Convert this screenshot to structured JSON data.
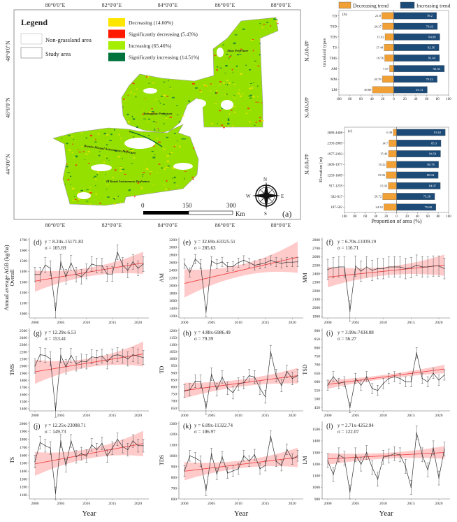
{
  "map": {
    "panel_label": "(a)",
    "legend_title": "Legend",
    "legend_items": [
      {
        "label": "Non-grassland area"
      },
      {
        "label": "Study area"
      }
    ],
    "trend_legend": [
      {
        "label": "Decreasing (14.60%)",
        "color": "#ffe600"
      },
      {
        "label": "Significantly decreasing (5.43%)",
        "color": "#ff1a00"
      },
      {
        "label": "Increasing (65.46%)",
        "color": "#a6ee00"
      },
      {
        "label": "Significantly increasing (14.51%)",
        "color": "#00733c"
      }
    ],
    "lon_labels": [
      "80°0'0\"E",
      "82°0'0\"E",
      "84°0'0\"E",
      "86°0'0\"E",
      "88°0'0\"E"
    ],
    "lat_labels": [
      "48°0'0\"N",
      "46°0'0\"N",
      "44°0'0\"N"
    ],
    "prefectures": [
      "Altay Prefecture",
      "Tarbagatay Prefecture",
      "Bortala Mongol Autonomous Prefecture",
      "Ili Kazak Autonomous Prefecture"
    ],
    "scale": {
      "ticks": [
        "0",
        "150",
        "300"
      ],
      "unit": "Km"
    },
    "compass": {
      "n": "N",
      "s": "S",
      "e": "E",
      "w": "W"
    }
  },
  "bar_legend": {
    "decreasing": "Decreasing trend",
    "increasing": "Increasing trend",
    "dec_color": "#f0a035",
    "inc_color": "#1d4b78"
  },
  "chart_data": [
    {
      "id": "b",
      "type": "bar",
      "panel_label": "(b)",
      "orientation": "horizontal-diverging",
      "ylabel": "Grassland types",
      "xlabel": "",
      "categories": [
        "TD",
        "TSD",
        "TDS",
        "TS",
        "TMS",
        "AM",
        "MM",
        "LM"
      ],
      "series": [
        {
          "name": "Decreasing trend",
          "values": [
            21.8,
            20.37,
            15.92,
            17.44,
            16.56,
            7.67,
            20.78,
            38.89
          ]
        },
        {
          "name": "Increasing trend",
          "values": [
            78.2,
            79.63,
            84.08,
            82.56,
            83.44,
            92.33,
            79.22,
            61.11
          ]
        }
      ],
      "xtick_labels": [
        "100",
        "80",
        "60",
        "40",
        "20",
        "0",
        "20",
        "40",
        "60",
        "80",
        "100"
      ],
      "xlim": [
        -100,
        100
      ]
    },
    {
      "id": "c",
      "type": "bar",
      "panel_label": "(c)",
      "orientation": "horizontal-diverging",
      "ylabel": "Elevation (m)",
      "xlabel": "Proportion of area (%)",
      "categories": [
        "2889-4408",
        "2393-2889",
        "1977-2393",
        "1609-1977",
        "1259-1609",
        "917-1259",
        "582-917",
        "187-582"
      ],
      "series": [
        {
          "name": "Decreasing trend",
          "values": [
            6.38,
            14.7,
            15.46,
            19.22,
            19.96,
            15.93,
            26.72,
            24.32
          ]
        },
        {
          "name": "Increasing trend",
          "values": [
            93.62,
            85.3,
            84.54,
            80.78,
            80.04,
            84.07,
            73.28,
            75.68
          ]
        }
      ],
      "xtick_labels": [
        "100",
        "80",
        "60",
        "40",
        "20",
        "0",
        "20",
        "40",
        "60",
        "80",
        "100"
      ],
      "xlim": [
        -100,
        100
      ]
    },
    {
      "id": "d",
      "type": "line",
      "panel_label": "(d)",
      "equation": "y = 8.24x-15171.83",
      "sigma": "σ = 105.69",
      "ylabel": "Annual average AGB (kg/ha)",
      "ylabel2": "Overall",
      "xlabel": "",
      "ylim": [
        960,
        1700
      ],
      "yticks": [
        1000,
        1100,
        1200,
        1300,
        1400,
        1500,
        1600,
        1700
      ],
      "xticks": [
        2000,
        2005,
        2010,
        2015,
        2020
      ],
      "x": [
        2000,
        2001,
        2002,
        2003,
        2004,
        2005,
        2006,
        2007,
        2008,
        2009,
        2010,
        2011,
        2012,
        2013,
        2014,
        2015,
        2016,
        2017,
        2018,
        2019,
        2020,
        2021
      ],
      "values": [
        1370,
        1370,
        1460,
        1430,
        1030,
        1490,
        1350,
        1480,
        1370,
        1350,
        1400,
        1470,
        1455,
        1455,
        1375,
        1375,
        1580,
        1460,
        1410,
        1490,
        1430,
        1470
      ],
      "error": 70,
      "trend": [
        1308,
        1481
      ],
      "ci_halfwidth": [
        100,
        40,
        105
      ]
    },
    {
      "id": "e",
      "type": "line",
      "panel_label": "(e)",
      "equation": "y = 32.69x-63325.51",
      "sigma": "σ = 285.63",
      "ylabel": "AM",
      "xlabel": "",
      "ylim": [
        1150,
        3200
      ],
      "yticks": [
        1200,
        1400,
        1600,
        1800,
        2000,
        2200,
        2400,
        2600,
        2800,
        3000,
        3200
      ],
      "xticks": [
        2000,
        2005,
        2010,
        2015,
        2020
      ],
      "x": [
        2000,
        2001,
        2002,
        2003,
        2004,
        2005,
        2006,
        2007,
        2008,
        2009,
        2010,
        2011,
        2012,
        2013,
        2014,
        2015,
        2016,
        2017,
        2018,
        2019,
        2020,
        2021
      ],
      "values": [
        2570,
        2340,
        2690,
        2560,
        1300,
        2640,
        2560,
        2620,
        2490,
        2500,
        2600,
        2660,
        2600,
        2530,
        2560,
        2590,
        2660,
        2610,
        2580,
        2610,
        2610,
        2620
      ],
      "error": 120,
      "trend": [
        2054,
        2741
      ],
      "ci_halfwidth": [
        370,
        150,
        410
      ]
    },
    {
      "id": "f",
      "type": "line",
      "panel_label": "(f)",
      "equation": "y = 6.70x-11039.19",
      "sigma": "σ = 116.71",
      "ylabel": "MM",
      "xlabel": "",
      "ylim": [
        1880,
        2800
      ],
      "yticks": [
        1900,
        2000,
        2100,
        2200,
        2300,
        2400,
        2500,
        2600,
        2700,
        2800
      ],
      "xticks": [
        2000,
        2005,
        2010,
        2015,
        2020
      ],
      "x": [
        2000,
        2001,
        2002,
        2003,
        2004,
        2005,
        2006,
        2007,
        2008,
        2009,
        2010,
        2011,
        2012,
        2013,
        2014,
        2015,
        2016,
        2017,
        2018,
        2019,
        2020,
        2021
      ],
      "values": [
        2450,
        2470,
        2480,
        2480,
        1960,
        2490,
        2430,
        2480,
        2440,
        2460,
        2460,
        2480,
        2480,
        2480,
        2460,
        2470,
        2500,
        2480,
        2480,
        2490,
        2490,
        2460
      ],
      "error": 120,
      "trend": [
        2361,
        2501
      ],
      "ci_halfwidth": [
        120,
        50,
        125
      ]
    },
    {
      "id": "g",
      "type": "line",
      "panel_label": "(g)",
      "equation": "y = 12.29x-6.53",
      "sigma": "σ = 153.41",
      "ylabel": "TMS",
      "xlabel": "",
      "ylim": [
        1370,
        2500
      ],
      "yticks": [
        1400,
        1500,
        1600,
        1700,
        1800,
        1900,
        2000,
        2100,
        2200,
        2300,
        2400,
        2500
      ],
      "xticks": [
        2000,
        2005,
        2010,
        2015,
        2020
      ],
      "x": [
        2000,
        2001,
        2002,
        2003,
        2004,
        2005,
        2006,
        2007,
        2008,
        2009,
        2010,
        2011,
        2012,
        2013,
        2014,
        2015,
        2016,
        2017,
        2018,
        2019,
        2020,
        2021
      ],
      "values": [
        2000,
        2160,
        2150,
        2100,
        1380,
        2150,
        1990,
        2150,
        2030,
        2070,
        2060,
        2130,
        2120,
        2140,
        2060,
        2140,
        2160,
        2140,
        2100,
        2160,
        2140,
        2120
      ],
      "error": 100,
      "trend": [
        1920,
        2170
      ],
      "ci_halfwidth": [
        170,
        60,
        175
      ]
    },
    {
      "id": "h",
      "type": "line",
      "panel_label": "(h)",
      "equation": "y = 4.88x-6986.49",
      "sigma": "σ = 79.39",
      "ylabel": "TD",
      "xlabel": "",
      "ylim": [
        630,
        1200
      ],
      "yticks": [
        650,
        700,
        750,
        800,
        850,
        900,
        950,
        1000,
        1050,
        1100,
        1150,
        1200
      ],
      "xticks": [
        2000,
        2005,
        2010,
        2015,
        2020
      ],
      "x": [
        2000,
        2001,
        2002,
        2003,
        2004,
        2005,
        2006,
        2007,
        2008,
        2009,
        2010,
        2011,
        2012,
        2013,
        2014,
        2015,
        2016,
        2017,
        2018,
        2019,
        2020,
        2021
      ],
      "values": [
        770,
        780,
        840,
        840,
        650,
        890,
        780,
        870,
        790,
        760,
        820,
        830,
        880,
        870,
        790,
        730,
        1050,
        880,
        810,
        910,
        860,
        880
      ],
      "error": 45,
      "trend": [
        775,
        880
      ],
      "ci_halfwidth": [
        55,
        25,
        55
      ]
    },
    {
      "id": "i",
      "type": "line",
      "panel_label": "(i)",
      "equation": "y = 3.99x-7434.08",
      "sigma": "σ = 56.27",
      "ylabel": "TSD",
      "xlabel": "",
      "ylim": [
        430,
        900
      ],
      "yticks": [
        450,
        500,
        550,
        600,
        650,
        700,
        750,
        800,
        850,
        900
      ],
      "xticks": [
        2000,
        2005,
        2010,
        2015,
        2020
      ],
      "x": [
        2000,
        2001,
        2002,
        2003,
        2004,
        2005,
        2006,
        2007,
        2008,
        2009,
        2010,
        2011,
        2012,
        2013,
        2014,
        2015,
        2016,
        2017,
        2018,
        2019,
        2020,
        2021
      ],
      "values": [
        580,
        630,
        590,
        600,
        450,
        620,
        580,
        630,
        560,
        550,
        590,
        620,
        630,
        620,
        600,
        600,
        770,
        620,
        600,
        650,
        610,
        640
      ],
      "error": 30,
      "trend": [
        585,
        675
      ],
      "ci_halfwidth": [
        25,
        12,
        25
      ]
    },
    {
      "id": "j",
      "type": "line",
      "panel_label": "(j)",
      "equation": "y = 12.25x-23008.71",
      "sigma": "σ = 149.73",
      "ylabel": "TS",
      "xlabel": "Year",
      "ylim": [
        1050,
        2000
      ],
      "yticks": [
        1100,
        1200,
        1300,
        1400,
        1500,
        1600,
        1700,
        1800,
        1900,
        2000
      ],
      "xticks": [
        2000,
        2005,
        2010,
        2015,
        2020
      ],
      "x": [
        2000,
        2001,
        2002,
        2003,
        2004,
        2005,
        2006,
        2007,
        2008,
        2009,
        2010,
        2011,
        2012,
        2013,
        2014,
        2015,
        2016,
        2017,
        2018,
        2019,
        2020,
        2021
      ],
      "values": [
        1520,
        1760,
        1720,
        1690,
        1120,
        1780,
        1470,
        1780,
        1580,
        1620,
        1590,
        1730,
        1670,
        1750,
        1590,
        1690,
        1800,
        1710,
        1670,
        1780,
        1720,
        1720
      ],
      "error": 80,
      "trend": [
        1491,
        1748
      ],
      "ci_halfwidth": [
        150,
        60,
        160
      ]
    },
    {
      "id": "k",
      "type": "line",
      "panel_label": "(k)",
      "equation": "y = 6.09x-11322.74",
      "sigma": "σ = 106.97",
      "ylabel": "TDS",
      "xlabel": "Year",
      "ylim": [
        600,
        1300
      ],
      "yticks": [
        600,
        700,
        800,
        900,
        1000,
        1100,
        1200,
        1300
      ],
      "xticks": [
        2000,
        2005,
        2010,
        2015,
        2020
      ],
      "x": [
        2000,
        2001,
        2002,
        2003,
        2004,
        2005,
        2006,
        2007,
        2008,
        2009,
        2010,
        2011,
        2012,
        2013,
        2014,
        2015,
        2016,
        2017,
        2018,
        2019,
        2020,
        2021
      ],
      "values": [
        860,
        1000,
        980,
        950,
        680,
        1020,
        830,
        990,
        840,
        860,
        880,
        1000,
        950,
        1010,
        880,
        910,
        1180,
        950,
        910,
        1060,
        970,
        1000
      ],
      "error": 50,
      "trend": [
        857,
        985
      ],
      "ci_halfwidth": [
        85,
        35,
        90
      ]
    },
    {
      "id": "l",
      "type": "line",
      "panel_label": "(l)",
      "equation": "y = 2.71x-4252.94",
      "sigma": "σ = 122.07",
      "ylabel": "LM",
      "xlabel": "Year",
      "ylim": [
        900,
        1550
      ],
      "yticks": [
        900,
        1000,
        1100,
        1200,
        1300,
        1400,
        1500
      ],
      "xticks": [
        2000,
        2005,
        2010,
        2015,
        2020
      ],
      "x": [
        2000,
        2001,
        2002,
        2003,
        2004,
        2005,
        2006,
        2007,
        2008,
        2009,
        2010,
        2011,
        2012,
        2013,
        2014,
        2015,
        2016,
        2017,
        2018,
        2019,
        2020,
        2021
      ],
      "values": [
        1230,
        1110,
        1280,
        1250,
        960,
        1280,
        1200,
        1300,
        1170,
        1070,
        1260,
        1270,
        1290,
        1280,
        1180,
        1000,
        1470,
        1280,
        1150,
        1340,
        1080,
        1330
      ],
      "error": 60,
      "trend": [
        1245,
        1300
      ],
      "ci_halfwidth": [
        50,
        25,
        55
      ]
    }
  ]
}
